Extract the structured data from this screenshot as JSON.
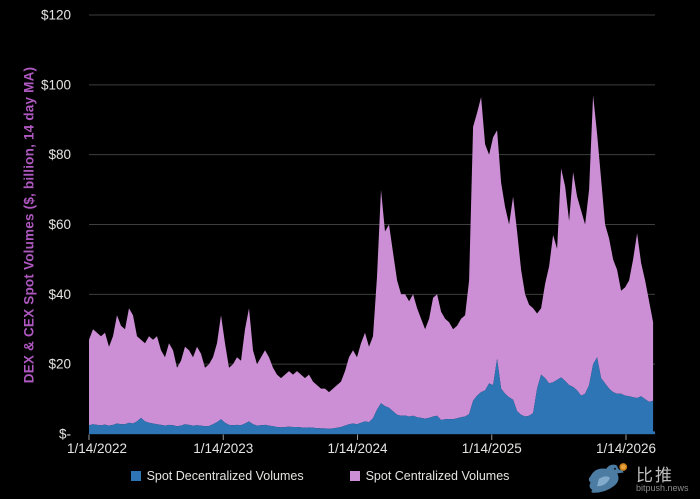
{
  "y_axis": {
    "title": "DEX & CEX Spot Volumes ($, billion, 14 day MA)",
    "tick_labels": [
      "$120",
      "$100",
      "$80",
      "$60",
      "$40",
      "$20",
      "$-"
    ],
    "tick_values": [
      120,
      100,
      80,
      60,
      40,
      20,
      0
    ]
  },
  "x_axis": {
    "tick_labels": [
      "1/14/2022",
      "1/14/2023",
      "1/14/2024",
      "1/14/2025",
      "1/14/2026"
    ],
    "tick_years": [
      0,
      1,
      2,
      3,
      4
    ]
  },
  "legend": [
    {
      "label": "Spot Decentralized Volumes",
      "color": "#2e75b6"
    },
    {
      "label": "Spot Centralized Volumes",
      "color": "#cc8fd5"
    }
  ],
  "watermark": {
    "cn": "比推",
    "domain": "bitpush.news"
  },
  "colors": {
    "background": "#000000",
    "dex_fill": "#2e75b6",
    "cex_fill": "#cc8fd5",
    "gridline": "#3e3e3e",
    "axis_line": "#2e75b6",
    "tick_mark": "#999999",
    "tick_label": "#e4e4e2",
    "yaxis_title": "#ae58c0"
  },
  "chart_data": {
    "type": "area",
    "stacked": true,
    "title": "",
    "xlabel": "",
    "ylabel": "DEX & CEX Spot Volumes ($, billion, 14 day MA)",
    "ylim": [
      0,
      120
    ],
    "grid": "horizontal",
    "legend_position": "bottom",
    "x_unit": "years_since_1/14/2022",
    "x_start": 0,
    "x_step": 0.0298,
    "x_end": 4.2,
    "series": [
      {
        "name": "Spot Decentralized Volumes",
        "color": "#2e75b6",
        "values": [
          2.5,
          2.8,
          2.6,
          2.5,
          2.7,
          2.4,
          2.6,
          3.0,
          2.8,
          2.8,
          3.2,
          3.0,
          3.6,
          4.6,
          3.6,
          3.2,
          3.0,
          2.8,
          2.6,
          2.4,
          2.6,
          2.5,
          2.2,
          2.4,
          2.8,
          2.6,
          2.4,
          2.5,
          2.4,
          2.2,
          2.3,
          2.8,
          3.4,
          4.2,
          3.2,
          2.6,
          2.5,
          2.6,
          2.5,
          3.0,
          3.6,
          2.8,
          2.4,
          2.5,
          2.6,
          2.4,
          2.2,
          2.0,
          1.9,
          2.0,
          2.1,
          2.0,
          2.0,
          1.9,
          1.8,
          1.9,
          1.8,
          1.7,
          1.6,
          1.6,
          1.5,
          1.6,
          1.8,
          2.0,
          2.4,
          2.8,
          3.0,
          2.8,
          3.2,
          3.6,
          3.4,
          4.5,
          7.0,
          8.8,
          8.0,
          7.5,
          6.5,
          5.5,
          5.2,
          5.3,
          5.0,
          5.2,
          4.8,
          4.6,
          4.4,
          4.6,
          5.0,
          5.2,
          4.0,
          4.2,
          4.3,
          4.2,
          4.5,
          4.8,
          5.0,
          5.7,
          9.5,
          11.0,
          12.0,
          12.5,
          14.5,
          14.0,
          21.5,
          13.0,
          11.5,
          10.5,
          9.8,
          6.5,
          5.5,
          5.0,
          5.2,
          6.0,
          13.0,
          17.0,
          16.0,
          14.5,
          14.8,
          15.5,
          16.2,
          15.2,
          14.0,
          13.5,
          12.5,
          11.0,
          11.5,
          14.0,
          20.0,
          22.0,
          16.0,
          14.5,
          13.0,
          12.0,
          11.5,
          11.5,
          11.0,
          10.8,
          10.5,
          10.3,
          10.8,
          10.0,
          9.2,
          9.5
        ]
      },
      {
        "name": "Spot Centralized Volumes",
        "color": "#cc8fd5",
        "values": [
          24.5,
          27.2,
          26.4,
          25.5,
          26.3,
          22.6,
          25.4,
          31.0,
          28.2,
          27.2,
          32.8,
          31.0,
          24.4,
          22.4,
          22.4,
          24.8,
          24.0,
          25.2,
          21.4,
          19.6,
          23.4,
          21.5,
          16.8,
          18.6,
          22.2,
          21.4,
          19.6,
          22.5,
          20.6,
          16.8,
          17.7,
          19.2,
          22.6,
          29.8,
          22.8,
          16.4,
          17.5,
          19.4,
          18.5,
          27.0,
          32.4,
          21.2,
          17.6,
          19.5,
          21.4,
          19.6,
          16.8,
          15.0,
          14.1,
          15.0,
          15.9,
          15.0,
          16.0,
          15.1,
          14.2,
          15.1,
          13.2,
          12.3,
          11.4,
          11.4,
          10.5,
          11.4,
          12.2,
          13.0,
          15.6,
          19.2,
          21.0,
          19.2,
          22.8,
          25.4,
          21.6,
          23.5,
          38.0,
          61.2,
          50.0,
          52.5,
          45.5,
          38.5,
          34.8,
          34.7,
          33.0,
          34.8,
          31.2,
          28.4,
          25.6,
          28.4,
          34.0,
          34.8,
          31.0,
          28.8,
          27.7,
          25.8,
          26.5,
          28.2,
          29.0,
          38.3,
          78.5,
          81.0,
          84.5,
          70.5,
          65.5,
          71.0,
          65.5,
          59.0,
          53.5,
          49.5,
          58.2,
          51.5,
          41.5,
          35.0,
          31.8,
          30.0,
          21.5,
          19.0,
          27.0,
          33.5,
          42.2,
          37.5,
          59.8,
          55.8,
          47.0,
          61.5,
          55.5,
          53.0,
          48.5,
          56.0,
          77.0,
          64.0,
          57.0,
          45.5,
          43.0,
          38.0,
          35.5,
          29.5,
          31.0,
          33.2,
          39.5,
          47.2,
          38.2,
          34.0,
          28.8,
          22.5
        ]
      }
    ]
  }
}
